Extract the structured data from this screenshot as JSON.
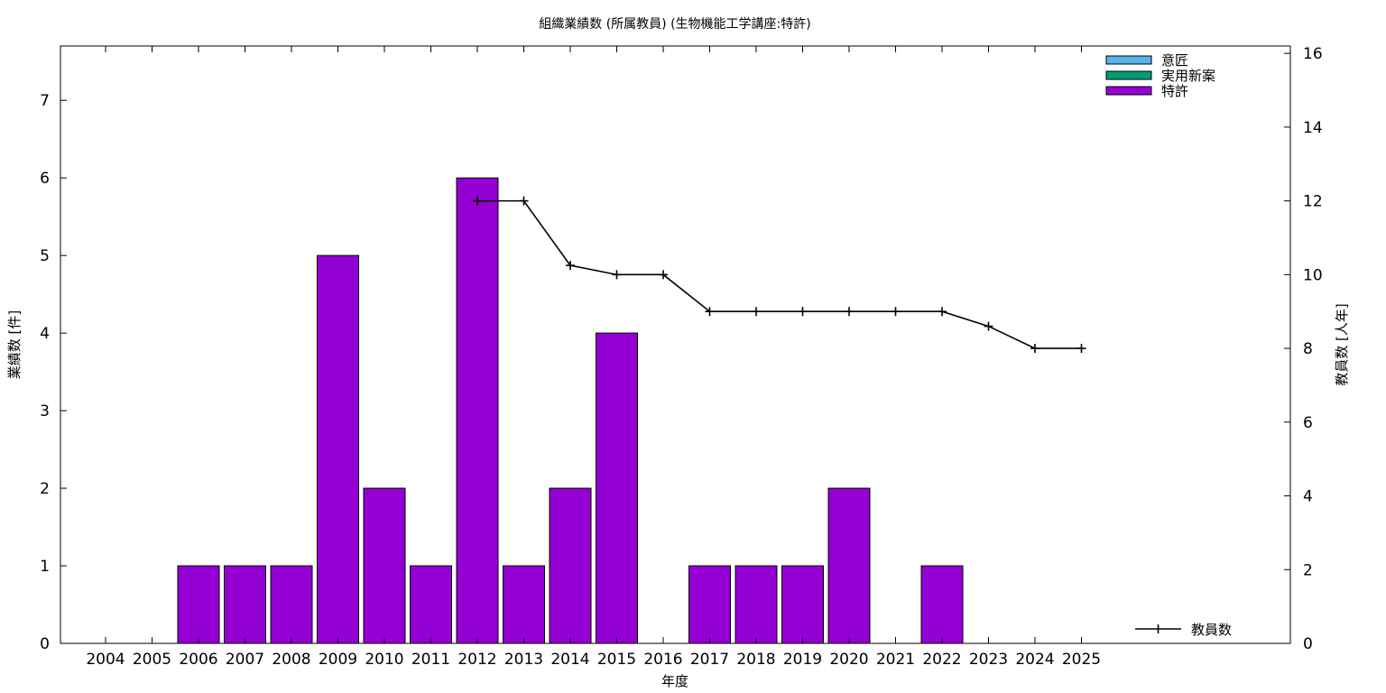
{
  "chart_data": {
    "type": "bar",
    "title": "組織業績数 (所属教員) (生物機能工学講座:特許)",
    "xlabel": "年度",
    "ylabel": "業績数 [件]",
    "y2label": "教員数 [人年]",
    "categories": [
      "2004",
      "2005",
      "2006",
      "2007",
      "2008",
      "2009",
      "2010",
      "2011",
      "2012",
      "2013",
      "2014",
      "2015",
      "2016",
      "2017",
      "2018",
      "2019",
      "2020",
      "2021",
      "2022",
      "2023",
      "2024",
      "2025"
    ],
    "ylim": [
      0,
      7.7
    ],
    "yticks": [
      0,
      1,
      2,
      3,
      4,
      5,
      6,
      7
    ],
    "y2lim": [
      0,
      16.2
    ],
    "y2ticks": [
      0,
      2,
      4,
      6,
      8,
      10,
      12,
      14,
      16
    ],
    "series": [
      {
        "name": "意匠",
        "color": "#56b4e9",
        "values": [
          0,
          0,
          0,
          0,
          0,
          0,
          0,
          0,
          0,
          0,
          0,
          0,
          0,
          0,
          0,
          0,
          0,
          0,
          0,
          0,
          0,
          0
        ]
      },
      {
        "name": "実用新案",
        "color": "#009e73",
        "values": [
          0,
          0,
          0,
          0,
          0,
          0,
          0,
          0,
          0,
          0,
          0,
          0,
          0,
          0,
          0,
          0,
          0,
          0,
          0,
          0,
          0,
          0
        ]
      },
      {
        "name": "特許",
        "color": "#9400d3",
        "values": [
          0,
          0,
          1,
          1,
          1,
          5,
          2,
          1,
          6,
          1,
          2,
          4,
          0,
          1,
          1,
          1,
          2,
          0,
          1,
          0,
          0,
          0
        ]
      }
    ],
    "line_series": {
      "name": "教員数",
      "axis": "y2",
      "color": "#000000",
      "x": [
        "2012",
        "2013",
        "2014",
        "2015",
        "2016",
        "2017",
        "2018",
        "2019",
        "2020",
        "2021",
        "2022",
        "2023",
        "2024",
        "2025"
      ],
      "values": [
        12,
        12,
        10.25,
        10,
        10,
        9,
        9,
        9,
        9,
        9,
        9,
        8.6,
        8,
        8
      ]
    },
    "legend_position": "top-right",
    "grid": false
  }
}
